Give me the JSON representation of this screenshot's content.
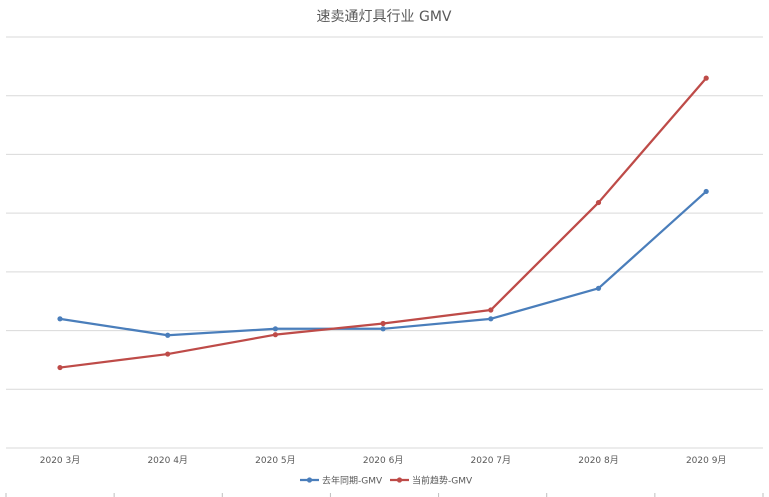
{
  "chart_data": {
    "type": "line",
    "title": "速卖通灯具行业 GMV",
    "xlabel": "",
    "ylabel": "",
    "categories": [
      "2020  3月",
      "2020 4月",
      "2020 5月",
      "2020 6月",
      "2020 7月",
      "2020 8月",
      "2020 9月"
    ],
    "ylim": [
      0,
      7
    ],
    "grid": true,
    "legend_position": "bottom",
    "series": [
      {
        "name": "去年同期-GMV",
        "color": "#4a7ebb",
        "values": [
          2.2,
          1.92,
          2.03,
          2.03,
          2.2,
          2.72,
          4.37
        ]
      },
      {
        "name": "当前趋势-GMV",
        "color": "#be4b48",
        "values": [
          1.37,
          1.6,
          1.93,
          2.12,
          2.35,
          4.18,
          6.3
        ]
      }
    ]
  }
}
